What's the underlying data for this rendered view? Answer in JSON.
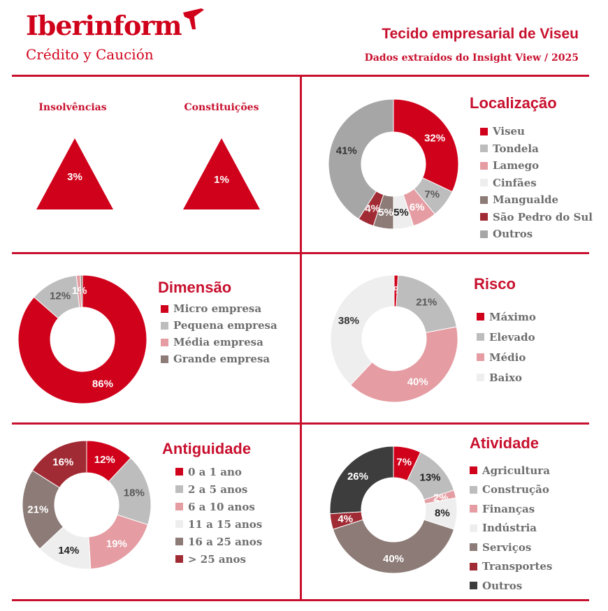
{
  "header": {
    "logo_name": "Iberinform",
    "logo_sub": "Crédito y Caución",
    "title": "Tecido empresarial de Viseu",
    "subtitle": "Dados extraídos do Insight View / 2025"
  },
  "colors": {
    "accent": "#c8102e",
    "brand": "#d0021b"
  },
  "kpis": [
    {
      "label": "Insolvências",
      "value": "3%"
    },
    {
      "label": "Constituições",
      "value": "1%"
    }
  ],
  "chart_data": [
    {
      "id": "localizacao",
      "type": "donut",
      "title": "Localização",
      "categories": [
        "Viseu",
        "Tondela",
        "Lamego",
        "Cinfães",
        "Mangualde",
        "São Pedro do Sul",
        "Outros"
      ],
      "values": [
        32,
        7,
        6,
        5,
        5,
        4,
        41
      ],
      "labels": [
        "32%",
        "7%",
        "6%",
        "5%",
        "5%",
        "4%",
        "41%"
      ],
      "colors": [
        "#d0021b",
        "#bdbdbd",
        "#e59ca2",
        "#eeeeee",
        "#8c7b76",
        "#a12b34",
        "#a6a6a6"
      ],
      "label_colors": [
        "#ffffff",
        "#595959",
        "#ffffff",
        "#222222",
        "#ffffff",
        "#ffffff",
        "#333333"
      ]
    },
    {
      "id": "dimensao",
      "type": "donut",
      "title": "Dimensão",
      "categories": [
        "Micro empresa",
        "Pequena empresa",
        "Média empresa",
        "Grande empresa"
      ],
      "values": [
        86,
        12,
        1,
        0.5
      ],
      "labels": [
        "86%",
        "12%",
        "1%",
        ""
      ],
      "colors": [
        "#d0021b",
        "#bdbdbd",
        "#e59ca2",
        "#8c7b76"
      ],
      "label_colors": [
        "#ffffff",
        "#595959",
        "#ffffff",
        "#ffffff"
      ]
    },
    {
      "id": "risco",
      "type": "donut",
      "title": "Risco",
      "categories": [
        "Máximo",
        "Elevado",
        "Médio",
        "Baixo"
      ],
      "values": [
        1,
        21,
        40,
        38
      ],
      "labels": [
        "1%",
        "21%",
        "40%",
        "38%"
      ],
      "colors": [
        "#d0021b",
        "#bdbdbd",
        "#e59ca2",
        "#eeeeee"
      ],
      "label_colors": [
        "#ffffff",
        "#595959",
        "#ffffff",
        "#333333"
      ]
    },
    {
      "id": "antiguidade",
      "type": "donut",
      "title": "Antiguidade",
      "categories": [
        "0 a 1 ano",
        "2 a 5 anos",
        "6 a 10 anos",
        "11 a 15 anos",
        "16 a 25 anos",
        "> 25 anos"
      ],
      "values": [
        12,
        18,
        19,
        14,
        21,
        16
      ],
      "labels": [
        "12%",
        "18%",
        "19%",
        "14%",
        "21%",
        "16%"
      ],
      "colors": [
        "#d0021b",
        "#bdbdbd",
        "#e59ca2",
        "#eeeeee",
        "#8c7b76",
        "#a12b34"
      ],
      "label_colors": [
        "#ffffff",
        "#595959",
        "#ffffff",
        "#222222",
        "#ffffff",
        "#ffffff"
      ]
    },
    {
      "id": "atividade",
      "type": "donut",
      "title": "Atividade",
      "categories": [
        "Agricultura",
        "Construção",
        "Finanças",
        "Indústria",
        "Serviços",
        "Transportes",
        "Outros"
      ],
      "values": [
        7,
        13,
        2,
        8,
        40,
        4,
        26
      ],
      "labels": [
        "7%",
        "13%",
        "2%",
        "8%",
        "40%",
        "4%",
        "26%"
      ],
      "colors": [
        "#d0021b",
        "#bdbdbd",
        "#e59ca2",
        "#eeeeee",
        "#8c7b76",
        "#a12b34",
        "#3d3d3d"
      ],
      "label_colors": [
        "#ffffff",
        "#222222",
        "#ffffff",
        "#222222",
        "#ffffff",
        "#ffffff",
        "#ffffff"
      ]
    }
  ]
}
